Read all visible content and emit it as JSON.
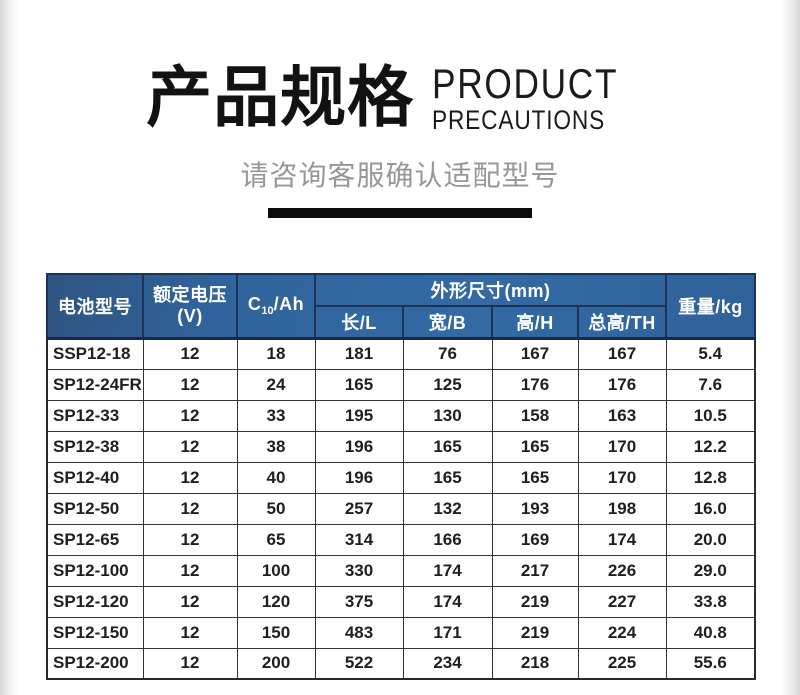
{
  "header": {
    "title_cn": "产品规格",
    "title_en_line1": "PRODUCT",
    "title_en_line2": "PRECAUTIONS",
    "subtitle": "请咨询客服确认适配型号"
  },
  "table": {
    "columns": {
      "model": "电池型号",
      "voltage_line1": "额定电压",
      "voltage_line2": "(V)",
      "c10_prefix": "C",
      "c10_sub": "10",
      "c10_suffix": "/Ah",
      "dims_group": "外形尺寸(mm)",
      "length": "长/L",
      "width": "宽/B",
      "height": "高/H",
      "total_height": "总高/TH",
      "weight": "重量/kg"
    },
    "rows": [
      {
        "model": "SSP12-18",
        "voltage": "12",
        "c10": "18",
        "length": "181",
        "width": "76",
        "height": "167",
        "total_height": "167",
        "weight": "5.4"
      },
      {
        "model": "SP12-24FR",
        "voltage": "12",
        "c10": "24",
        "length": "165",
        "width": "125",
        "height": "176",
        "total_height": "176",
        "weight": "7.6"
      },
      {
        "model": "SP12-33",
        "voltage": "12",
        "c10": "33",
        "length": "195",
        "width": "130",
        "height": "158",
        "total_height": "163",
        "weight": "10.5"
      },
      {
        "model": "SP12-38",
        "voltage": "12",
        "c10": "38",
        "length": "196",
        "width": "165",
        "height": "165",
        "total_height": "170",
        "weight": "12.2"
      },
      {
        "model": "SP12-40",
        "voltage": "12",
        "c10": "40",
        "length": "196",
        "width": "165",
        "height": "165",
        "total_height": "170",
        "weight": "12.8"
      },
      {
        "model": "SP12-50",
        "voltage": "12",
        "c10": "50",
        "length": "257",
        "width": "132",
        "height": "193",
        "total_height": "198",
        "weight": "16.0"
      },
      {
        "model": "SP12-65",
        "voltage": "12",
        "c10": "65",
        "length": "314",
        "width": "166",
        "height": "169",
        "total_height": "174",
        "weight": "20.0"
      },
      {
        "model": "SP12-100",
        "voltage": "12",
        "c10": "100",
        "length": "330",
        "width": "174",
        "height": "217",
        "total_height": "226",
        "weight": "29.0"
      },
      {
        "model": "SP12-120",
        "voltage": "12",
        "c10": "120",
        "length": "375",
        "width": "174",
        "height": "219",
        "total_height": "227",
        "weight": "33.8"
      },
      {
        "model": "SP12-150",
        "voltage": "12",
        "c10": "150",
        "length": "483",
        "width": "171",
        "height": "219",
        "total_height": "224",
        "weight": "40.8"
      },
      {
        "model": "SP12-200",
        "voltage": "12",
        "c10": "200",
        "length": "522",
        "width": "234",
        "height": "218",
        "total_height": "225",
        "weight": "55.6"
      }
    ]
  },
  "colors": {
    "header_bg_left": "#2e4d74",
    "header_bg_mid": "#336aa4",
    "header_text": "#ffffff",
    "body_text": "#1f1f1f",
    "subtitle_text": "#979797",
    "divider": "#0d0d0d"
  }
}
